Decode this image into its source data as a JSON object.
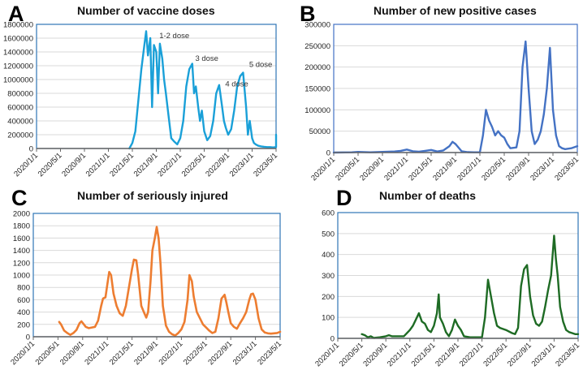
{
  "chart_data": [
    {
      "panel": "A",
      "type": "line",
      "title": "Number of vaccine doses",
      "xlabel": "",
      "ylabel": "",
      "color": "#1aa0d8",
      "frame_color": "#2e75b6",
      "ylim": [
        0,
        1800000
      ],
      "yticks": [
        0,
        200000,
        400000,
        600000,
        800000,
        1000000,
        1200000,
        1400000,
        1600000,
        1800000
      ],
      "ytick_labels": [
        "0",
        "200000",
        "400000",
        "600000",
        "800000",
        "1000000",
        "1200000",
        "1400000",
        "1600000",
        "1800000"
      ],
      "xticks": [
        "2020/1/1",
        "2020/5/1",
        "2020/9/1",
        "2021/1/1",
        "2021/5/1",
        "2021/9/1",
        "2022/1/1",
        "2022/5/1",
        "2022/9/1",
        "2023/1/1",
        "2023/5/1"
      ],
      "grid": true,
      "annotations": [
        {
          "text": "1-2 dose",
          "month": 20.5,
          "value": 1600000
        },
        {
          "text": "3 dose",
          "month": 26.5,
          "value": 1270000
        },
        {
          "text": "4 dose",
          "month": 31.5,
          "value": 900000
        },
        {
          "text": "5 dose",
          "month": 35.5,
          "value": 1180000
        }
      ],
      "series": [
        {
          "name": "Vaccine doses",
          "x_months": [
            15.5,
            16,
            16.5,
            17,
            17.5,
            18,
            18.3,
            18.6,
            19,
            19.3,
            19.6,
            20,
            20.3,
            20.6,
            21,
            21.3,
            21.6,
            22,
            22.5,
            23,
            23.5,
            24,
            24.5,
            25,
            25.5,
            26,
            26.3,
            26.6,
            27,
            27.3,
            27.6,
            28,
            28.5,
            29,
            29.5,
            30,
            30.5,
            31,
            31.3,
            31.6,
            32,
            32.5,
            33,
            33.5,
            34,
            34.5,
            35,
            35.3,
            35.6,
            36,
            36.3,
            36.6,
            37,
            37.5,
            38,
            38.5,
            39,
            39.5,
            40,
            40
          ],
          "values": [
            0,
            80000,
            250000,
            700000,
            1150000,
            1500000,
            1700000,
            1350000,
            1600000,
            600000,
            1500000,
            1400000,
            800000,
            1520000,
            1300000,
            1000000,
            800000,
            500000,
            150000,
            100000,
            60000,
            150000,
            400000,
            900000,
            1150000,
            1230000,
            800000,
            900000,
            600000,
            400000,
            550000,
            250000,
            120000,
            180000,
            400000,
            800000,
            920000,
            600000,
            400000,
            300000,
            200000,
            280000,
            550000,
            900000,
            1050000,
            1100000,
            600000,
            200000,
            400000,
            150000,
            80000,
            60000,
            40000,
            30000,
            25000,
            20000,
            20000,
            15000,
            20000,
            200000
          ]
        }
      ]
    },
    {
      "panel": "B",
      "type": "line",
      "title": "Number of new positive cases",
      "xlabel": "",
      "ylabel": "",
      "color": "#4472c4",
      "frame_color": "#4472c4",
      "ylim": [
        0,
        300000
      ],
      "yticks": [
        0,
        50000,
        100000,
        150000,
        200000,
        250000,
        300000
      ],
      "ytick_labels": [
        "0",
        "50000",
        "100000",
        "150000",
        "200000",
        "250000",
        "300000"
      ],
      "xticks": [
        "2020/1/1",
        "2020/5/1",
        "2020/9/1",
        "2021/1/1",
        "2021/5/1",
        "2021/9/1",
        "2022/1/1",
        "2022/5/1",
        "2022/9/1",
        "2023/1/1",
        "2023/5/1"
      ],
      "grid": true,
      "annotations": [],
      "series": [
        {
          "name": "New positive cases",
          "x_months": [
            0,
            3,
            4,
            6,
            7,
            8,
            10,
            11,
            12,
            13,
            14,
            15,
            16,
            17,
            18,
            19,
            19.5,
            20,
            21,
            22,
            23,
            24,
            24.5,
            25,
            25.5,
            26,
            26.5,
            27,
            27.5,
            28,
            28.5,
            29,
            30,
            30.5,
            31,
            31.5,
            32,
            32.5,
            33,
            33.5,
            34,
            34.5,
            35,
            35.5,
            36,
            36.5,
            37,
            37.5,
            38,
            39,
            40
          ],
          "values": [
            0,
            500,
            1500,
            500,
            1000,
            1500,
            2500,
            4000,
            7000,
            3000,
            2000,
            4000,
            6000,
            2500,
            5000,
            15000,
            25000,
            20000,
            3000,
            1000,
            500,
            500,
            40000,
            100000,
            75000,
            60000,
            40000,
            50000,
            40000,
            35000,
            20000,
            10000,
            12000,
            50000,
            200000,
            260000,
            150000,
            50000,
            20000,
            30000,
            50000,
            90000,
            150000,
            245000,
            100000,
            40000,
            15000,
            10000,
            8000,
            10000,
            15000
          ]
        }
      ]
    },
    {
      "panel": "C",
      "type": "line",
      "title": "Number of seriously injured",
      "xlabel": "",
      "ylabel": "",
      "color": "#ed7d31",
      "frame_color": "#2e75b6",
      "ylim": [
        0,
        2000
      ],
      "yticks": [
        0,
        200,
        400,
        600,
        800,
        1000,
        1200,
        1400,
        1600,
        1800,
        2000
      ],
      "ytick_labels": [
        "0",
        "200",
        "400",
        "600",
        "800",
        "1000",
        "1200",
        "1400",
        "1600",
        "1800",
        "2000"
      ],
      "xticks": [
        "2020/1/1",
        "2020/5/1",
        "2020/9/1",
        "2021/1/1",
        "2021/5/1",
        "2021/9/1",
        "2022/1/1",
        "2022/5/1",
        "2022/9/1",
        "2023/1/1",
        "2023/5/1"
      ],
      "grid": true,
      "annotations": [],
      "series": [
        {
          "name": "Seriously injured",
          "x_months": [
            4.2,
            4.5,
            5,
            5.5,
            6,
            6.5,
            7,
            7.5,
            7.8,
            8.2,
            8.5,
            9,
            9.5,
            10,
            10.5,
            11,
            11.3,
            11.7,
            12,
            12.3,
            12.6,
            13,
            13.5,
            14,
            14.5,
            15,
            15.5,
            16,
            16.3,
            16.7,
            17,
            17.5,
            18,
            18.3,
            18.6,
            19,
            19.3,
            19.7,
            20,
            20.3,
            20.6,
            21,
            21.5,
            22,
            22.5,
            23,
            23.5,
            24,
            24.5,
            25,
            25.3,
            25.7,
            26,
            26.5,
            27,
            27.5,
            28,
            28.5,
            29,
            29.5,
            30,
            30.5,
            31,
            31.3,
            31.6,
            32,
            32.5,
            33,
            33.5,
            34,
            34.5,
            35,
            35.3,
            35.6,
            36,
            36.5,
            37,
            37.5,
            38,
            38.5,
            39,
            39.5,
            40
          ],
          "values": [
            240,
            200,
            100,
            60,
            30,
            60,
            110,
            220,
            250,
            200,
            160,
            140,
            150,
            160,
            260,
            500,
            620,
            640,
            850,
            1050,
            1000,
            700,
            500,
            380,
            340,
            500,
            800,
            1100,
            1250,
            1240,
            1000,
            500,
            380,
            310,
            400,
            900,
            1400,
            1600,
            1780,
            1600,
            1200,
            500,
            180,
            80,
            40,
            20,
            60,
            120,
            240,
            600,
            1000,
            900,
            650,
            400,
            300,
            200,
            150,
            100,
            60,
            80,
            300,
            620,
            680,
            550,
            400,
            220,
            160,
            130,
            220,
            300,
            400,
            600,
            690,
            700,
            600,
            300,
            120,
            70,
            55,
            50,
            55,
            60,
            80
          ]
        }
      ]
    },
    {
      "panel": "D",
      "type": "line",
      "title": "Number of deaths",
      "xlabel": "",
      "ylabel": "",
      "color": "#1e6b24",
      "frame_color": "#2e75b6",
      "ylim": [
        0,
        600
      ],
      "yticks": [
        0,
        100,
        200,
        300,
        400,
        500,
        600
      ],
      "ytick_labels": [
        "0",
        "100",
        "200",
        "300",
        "400",
        "500",
        "600"
      ],
      "xticks": [
        "2020/1/1",
        "2020/5/1",
        "2020/9/1",
        "2021/1/1",
        "2021/5/1",
        "2021/9/1",
        "2022/1/1",
        "2022/5/1",
        "2022/9/1",
        "2023/1/1",
        "2023/5/1"
      ],
      "grid": true,
      "annotations": [],
      "series": [
        {
          "name": "Deaths",
          "x_months": [
            4,
            4.5,
            5,
            5.5,
            6,
            7,
            8,
            8.5,
            9,
            10,
            11,
            12,
            12.5,
            13,
            13.5,
            14,
            14.5,
            15,
            15.5,
            16,
            16.5,
            16.8,
            17,
            17.5,
            18,
            18.5,
            19,
            19.5,
            20,
            20.5,
            21,
            22,
            23,
            24,
            24.5,
            25,
            25.5,
            26,
            26.5,
            27,
            28,
            29,
            29.5,
            30,
            30.5,
            31,
            31.5,
            32,
            32.5,
            33,
            33.5,
            34,
            34.5,
            35,
            35.5,
            36,
            36.3,
            36.6,
            37,
            37.5,
            38,
            38.5,
            39,
            39.5,
            40
          ],
          "values": [
            20,
            15,
            5,
            10,
            2,
            5,
            10,
            15,
            10,
            10,
            10,
            40,
            60,
            90,
            120,
            80,
            70,
            40,
            30,
            60,
            120,
            210,
            100,
            70,
            30,
            10,
            40,
            90,
            60,
            40,
            10,
            5,
            5,
            5,
            100,
            280,
            200,
            120,
            60,
            50,
            40,
            25,
            20,
            50,
            250,
            330,
            350,
            200,
            110,
            70,
            60,
            80,
            150,
            230,
            300,
            490,
            380,
            300,
            150,
            80,
            40,
            30,
            25,
            20,
            20
          ]
        }
      ]
    }
  ]
}
